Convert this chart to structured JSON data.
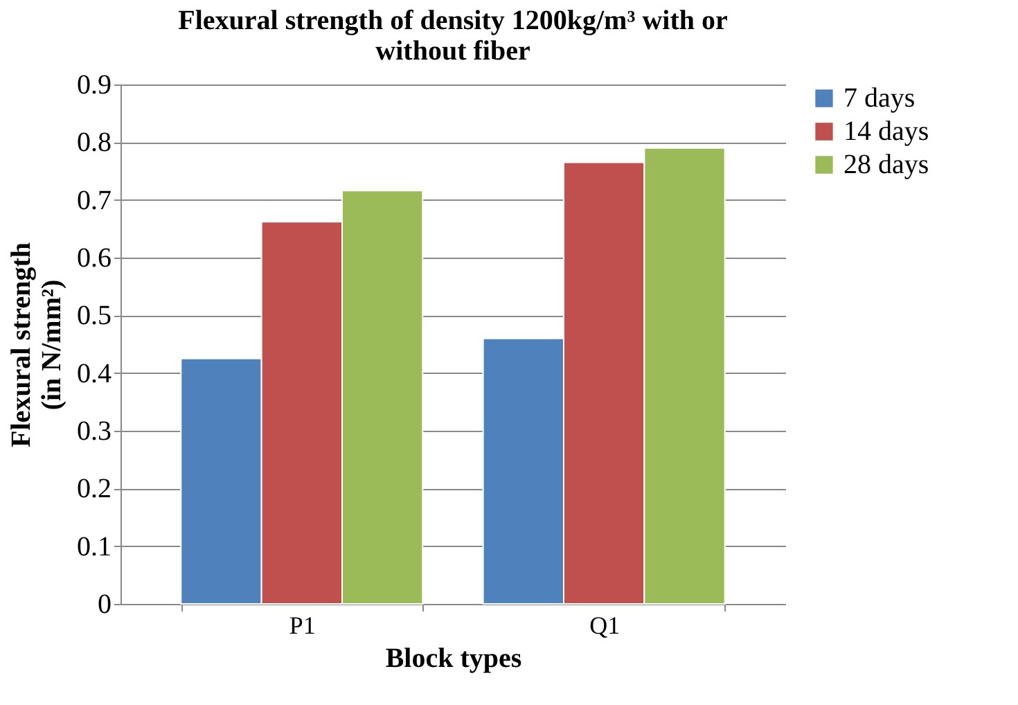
{
  "chart_data": {
    "type": "bar",
    "title": "Flexural strength of density 1200kg/m³ with or without fiber",
    "xlabel": "Block types",
    "ylabel": "Flexural strength (in N/mm²)",
    "categories": [
      "P1",
      "Q1"
    ],
    "series": [
      {
        "name": "7 days",
        "color": "#4f81bd",
        "values": [
          0.425,
          0.46
        ]
      },
      {
        "name": "14 days",
        "color": "#c0504d",
        "values": [
          0.662,
          0.765
        ]
      },
      {
        "name": "28 days",
        "color": "#9bbb59",
        "values": [
          0.716,
          0.79
        ]
      }
    ],
    "ylim": [
      0,
      0.9
    ],
    "yticks": [
      0,
      0.1,
      0.2,
      0.3,
      0.4,
      0.5,
      0.6,
      0.7,
      0.8,
      0.9
    ],
    "grid": "y",
    "legend": "right"
  }
}
